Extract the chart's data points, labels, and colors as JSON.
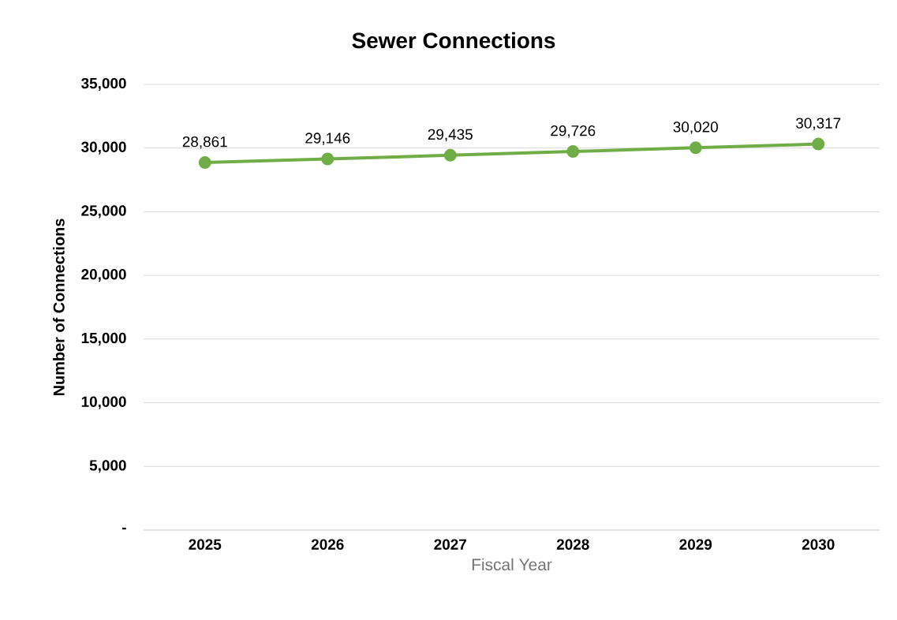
{
  "chart_data": {
    "type": "line",
    "title": "Sewer Connections",
    "xlabel": "Fiscal Year",
    "ylabel": "Number of Connections",
    "categories": [
      "2025",
      "2026",
      "2027",
      "2028",
      "2029",
      "2030"
    ],
    "series": [
      {
        "color": "#70ad47",
        "values": [
          28861,
          29146,
          29435,
          29726,
          30020,
          30317
        ],
        "value_labels": [
          "28,861",
          "29,146",
          "29,435",
          "29,726",
          "30,020",
          "30,317"
        ]
      }
    ],
    "ylim": [
      0,
      35000
    ],
    "yticks": [
      {
        "value": 0,
        "label": "-"
      },
      {
        "value": 5000,
        "label": "5,000"
      },
      {
        "value": 10000,
        "label": "10,000"
      },
      {
        "value": 15000,
        "label": "15,000"
      },
      {
        "value": 20000,
        "label": "20,000"
      },
      {
        "value": 25000,
        "label": "25,000"
      },
      {
        "value": 30000,
        "label": "30,000"
      },
      {
        "value": 35000,
        "label": "35,000"
      }
    ],
    "grid": "y",
    "marker": "circle",
    "line_style": "solid"
  }
}
